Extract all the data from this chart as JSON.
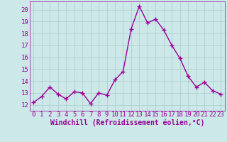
{
  "x": [
    0,
    1,
    2,
    3,
    4,
    5,
    6,
    7,
    8,
    9,
    10,
    11,
    12,
    13,
    14,
    15,
    16,
    17,
    18,
    19,
    20,
    21,
    22,
    23
  ],
  "y": [
    12.2,
    12.7,
    13.5,
    12.9,
    12.5,
    13.1,
    13.0,
    12.1,
    13.0,
    12.8,
    14.1,
    14.8,
    18.4,
    20.3,
    18.9,
    19.2,
    18.3,
    17.0,
    15.9,
    14.4,
    13.5,
    13.9,
    13.2,
    12.9
  ],
  "line_color": "#990099",
  "marker": "+",
  "marker_size": 4,
  "bg_color": "#cce8e8",
  "grid_color": "#aacccc",
  "tick_label_color": "#990099",
  "xlabel": "Windchill (Refroidissement éolien,°C)",
  "xlabel_color": "#990099",
  "ylabel_color": "#990099",
  "ylim": [
    11.5,
    20.7
  ],
  "xlim": [
    -0.5,
    23.5
  ],
  "yticks": [
    12,
    13,
    14,
    15,
    16,
    17,
    18,
    19,
    20
  ],
  "xticks": [
    0,
    1,
    2,
    3,
    4,
    5,
    6,
    7,
    8,
    9,
    10,
    11,
    12,
    13,
    14,
    15,
    16,
    17,
    18,
    19,
    20,
    21,
    22,
    23
  ],
  "font_size": 6.5,
  "xlabel_fontsize": 7,
  "linewidth": 1.0
}
